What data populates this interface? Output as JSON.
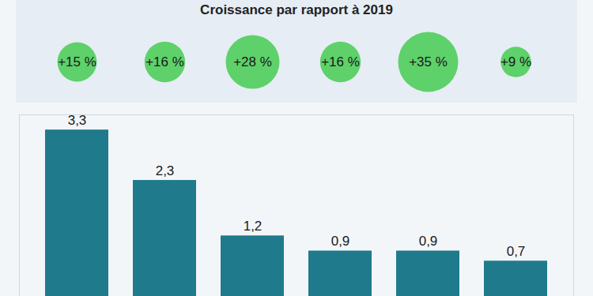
{
  "chart_data": {
    "type": "bar",
    "categories": [
      null,
      null,
      null,
      null,
      null,
      null
    ],
    "values": [
      3.3,
      2.3,
      1.2,
      0.9,
      0.9,
      0.7
    ],
    "value_labels": [
      "3,3",
      "2,3",
      "1,2",
      "0,9",
      "0,9",
      "0,7"
    ],
    "data_labels": true,
    "tick_labels": false,
    "color": "#1f7a8c",
    "ylim": [
      0,
      3.6
    ],
    "growth": {
      "title": "Croissance par rapport à 2019",
      "values": [
        15,
        16,
        28,
        16,
        35,
        9
      ],
      "value_labels": [
        "+15 %",
        "+16 %",
        "+28 %",
        "+16 %",
        "+35 %",
        "+9 %"
      ],
      "color": "#5ed16a"
    }
  }
}
